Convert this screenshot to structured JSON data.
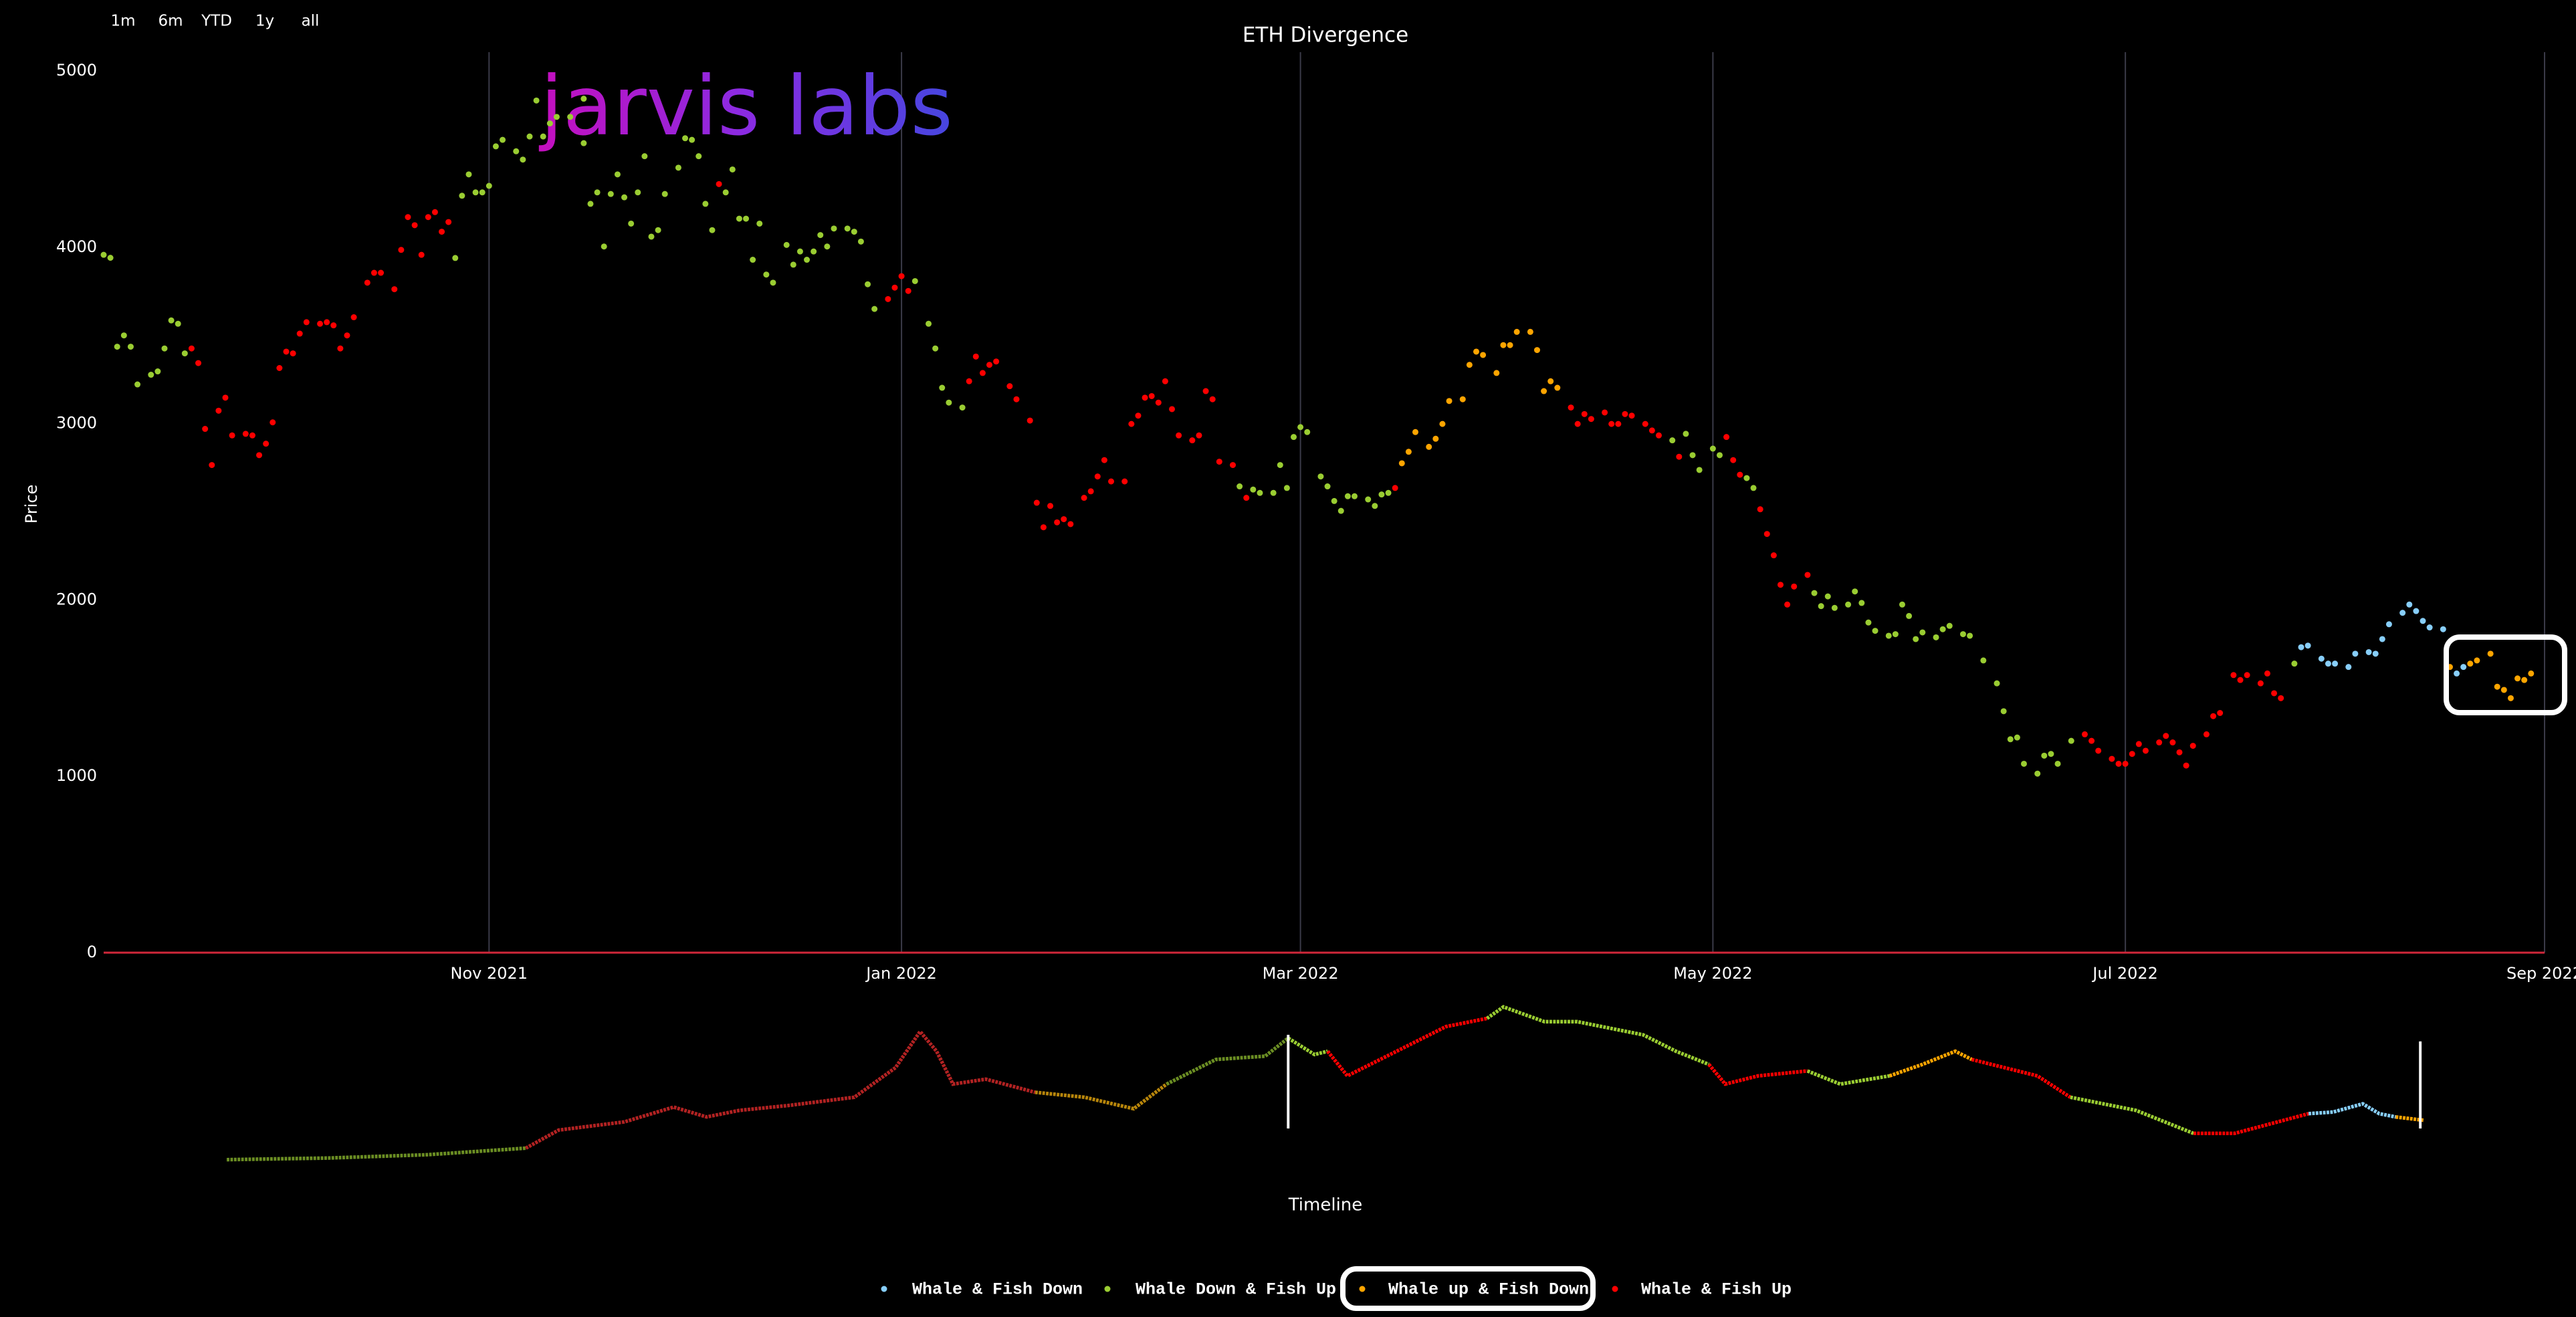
{
  "chart_data": {
    "type": "scatter",
    "title": "ETH Divergence",
    "ylabel": "Price",
    "xlabel": "Timeline",
    "logo": "jarvis labs",
    "range_buttons": [
      "1m",
      "6m",
      "YTD",
      "1y",
      "all"
    ],
    "xlim": [
      -57,
      304
    ],
    "xticks": [
      {
        "value": 0,
        "label": "Nov 2021"
      },
      {
        "value": 61,
        "label": "Jan 2022"
      },
      {
        "value": 120,
        "label": "Mar 2022"
      },
      {
        "value": 181,
        "label": "May 2022"
      },
      {
        "value": 242,
        "label": "Jul 2022"
      },
      {
        "value": 304,
        "label": "Sep 2022"
      }
    ],
    "ylim": [
      0,
      5000
    ],
    "yticks": [
      0,
      1000,
      2000,
      3000,
      4000,
      5000
    ],
    "grid": "x",
    "legend": "bottom",
    "series": [
      {
        "name": "Whale & Fish Down",
        "color": "#87cefa",
        "x": [
          268,
          269,
          271,
          272,
          273,
          275,
          276,
          278,
          279,
          280,
          281,
          283,
          284,
          285,
          286,
          287,
          289,
          291,
          292
        ],
        "values": [
          1732,
          1741,
          1667,
          1639,
          1639,
          1620,
          1695,
          1704,
          1695,
          1778,
          1862,
          1927,
          1974,
          1937,
          1881,
          1844,
          1834,
          1583,
          1620
        ]
      },
      {
        "name": "Whale Down & Fish Up",
        "color": "#9acd32",
        "x": [
          -57,
          -56,
          -55,
          -54,
          -53,
          -52,
          -50,
          -49,
          -48,
          -47,
          -46,
          -45,
          -5,
          -4,
          -3,
          -2,
          -1,
          0,
          1,
          2,
          4,
          5,
          6,
          7,
          8,
          9,
          10,
          12,
          14,
          14,
          15,
          16,
          17,
          18,
          19,
          20,
          21,
          22,
          23,
          24,
          25,
          26,
          28,
          29,
          30,
          31,
          32,
          33,
          35,
          36,
          37,
          38,
          39,
          40,
          41,
          42,
          44,
          45,
          46,
          47,
          48,
          49,
          50,
          51,
          53,
          54,
          55,
          56,
          57,
          63,
          65,
          66,
          67,
          68,
          70,
          111,
          113,
          114,
          116,
          117,
          118,
          119,
          120,
          121,
          123,
          124,
          125,
          126,
          127,
          128,
          130,
          131,
          132,
          133,
          175,
          177,
          178,
          179,
          181,
          182,
          186,
          187,
          196,
          197,
          198,
          199,
          201,
          202,
          203,
          204,
          205,
          207,
          208,
          209,
          210,
          211,
          212,
          214,
          215,
          216,
          218,
          219,
          221,
          223,
          224,
          225,
          226,
          227,
          229,
          230,
          231,
          232,
          234,
          267
        ],
        "values": [
          3957,
          3940,
          3436,
          3500,
          3436,
          3222,
          3277,
          3296,
          3426,
          3585,
          3566,
          3398,
          3939,
          4292,
          4413,
          4311,
          4311,
          4348,
          4572,
          4609,
          4544,
          4497,
          4628,
          4832,
          4628,
          4702,
          4739,
          4739,
          4842,
          4590,
          4246,
          4311,
          4004,
          4302,
          4413,
          4283,
          4134,
          4311,
          4516,
          4060,
          4097,
          4302,
          4451,
          4618,
          4609,
          4516,
          4246,
          4097,
          4311,
          4441,
          4162,
          4162,
          3929,
          4134,
          3845,
          3799,
          4013,
          3901,
          3976,
          3929,
          3976,
          4069,
          4004,
          4106,
          4106,
          4088,
          4032,
          3790,
          3650,
          3808,
          3566,
          3426,
          3203,
          3119,
          3091,
          2644,
          2626,
          2607,
          2607,
          2765,
          2635,
          2924,
          2980,
          2952,
          2700,
          2644,
          2561,
          2505,
          2588,
          2588,
          2570,
          2533,
          2598,
          2607,
          2905,
          2942,
          2821,
          2737,
          2858,
          2821,
          2691,
          2635,
          2039,
          1965,
          2020,
          1955,
          1974,
          2048,
          1983,
          1872,
          1825,
          1797,
          1806,
          1974,
          1909,
          1778,
          1816,
          1788,
          1834,
          1853,
          1806,
          1797,
          1657,
          1527,
          1369,
          1210,
          1220,
          1071,
          1015,
          1117,
          1127,
          1071,
          1201,
          1639
        ]
      },
      {
        "name": "Whale up & Fish Down",
        "color": "#ffa500",
        "x": [
          135,
          136,
          137,
          139,
          140,
          141,
          142,
          144,
          145,
          146,
          147,
          149,
          150,
          151,
          152,
          154,
          155,
          156,
          157,
          158,
          290,
          293,
          294,
          296,
          297,
          298,
          299,
          300,
          301,
          302
        ],
        "values": [
          2775,
          2840,
          2952,
          2868,
          2914,
          2998,
          3128,
          3138,
          3333,
          3408,
          3389,
          3287,
          3445,
          3445,
          3520,
          3520,
          3417,
          3184,
          3240,
          3203,
          1620,
          1639,
          1657,
          1695,
          1508,
          1490,
          1443,
          1555,
          1546,
          1583
        ]
      },
      {
        "name": "Whale & Fish Up",
        "color": "#ff0000",
        "x": [
          -44,
          -43,
          -42,
          -41,
          -40,
          -39,
          -38,
          -36,
          -35,
          -34,
          -33,
          -32,
          -31,
          -30,
          -29,
          -28,
          -27,
          -25,
          -24,
          -23,
          -22,
          -21,
          -20,
          -18,
          -17,
          -16,
          -14,
          -13,
          -12,
          -11,
          -10,
          -9,
          -8,
          -7,
          -6,
          34,
          59,
          60,
          61,
          62,
          71,
          72,
          73,
          74,
          75,
          77,
          78,
          80,
          81,
          82,
          83,
          84,
          85,
          86,
          88,
          89,
          90,
          91,
          92,
          94,
          95,
          96,
          97,
          98,
          99,
          100,
          101,
          102,
          104,
          105,
          106,
          107,
          108,
          110,
          112,
          134,
          160,
          161,
          162,
          163,
          165,
          166,
          167,
          168,
          169,
          171,
          172,
          173,
          176,
          183,
          184,
          185,
          188,
          189,
          190,
          191,
          192,
          193,
          195,
          236,
          237,
          238,
          240,
          241,
          242,
          243,
          244,
          245,
          247,
          248,
          249,
          250,
          251,
          252,
          254,
          255,
          256,
          258,
          259,
          260,
          262,
          263,
          264,
          265
        ],
        "values": [
          3426,
          3343,
          2970,
          2765,
          3073,
          3147,
          2933,
          2942,
          2933,
          2821,
          2886,
          3007,
          3315,
          3408,
          3398,
          3510,
          3575,
          3566,
          3575,
          3557,
          3426,
          3500,
          3603,
          3799,
          3855,
          3855,
          3762,
          3985,
          4171,
          4125,
          3957,
          4171,
          4199,
          4088,
          4143,
          4358,
          3706,
          3771,
          3836,
          3752,
          3240,
          3380,
          3287,
          3333,
          3352,
          3212,
          3138,
          3017,
          2551,
          2412,
          2533,
          2440,
          2458,
          2430,
          2579,
          2616,
          2700,
          2793,
          2672,
          2672,
          2998,
          3045,
          3147,
          3156,
          3119,
          3240,
          3082,
          2933,
          2905,
          2933,
          3184,
          3138,
          2784,
          2765,
          2579,
          2635,
          3091,
          2998,
          3054,
          3026,
          3063,
          2998,
          2998,
          3054,
          3045,
          2998,
          2961,
          2933,
          2812,
          2924,
          2793,
          2710,
          2514,
          2374,
          2253,
          2086,
          1974,
          2076,
          2142,
          1238,
          1201,
          1145,
          1099,
          1071,
          1071,
          1127,
          1183,
          1145,
          1192,
          1229,
          1192,
          1136,
          1061,
          1173,
          1238,
          1341,
          1359,
          1574,
          1546,
          1574,
          1527,
          1583,
          1471,
          1443
        ]
      }
    ]
  }
}
